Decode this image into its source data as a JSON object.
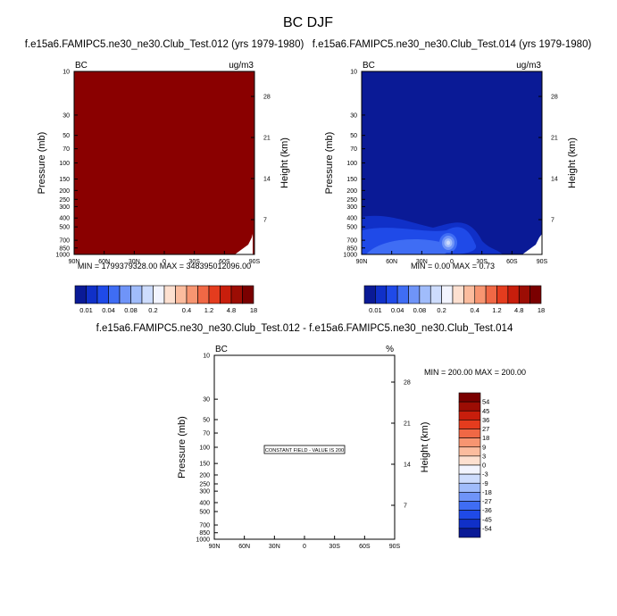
{
  "figure": {
    "title": "BC DJF"
  },
  "chart_data": [
    {
      "type": "heatmap",
      "title": "f.e15a6.FAMIPC5.ne30_ne30.Club_Test.012 (yrs 1979-1980)",
      "left_label": "BC",
      "units": "ug/m3",
      "xlabel": "",
      "ylabel": "Pressure (mb)",
      "y2label": "Height (km)",
      "x_ticks": [
        "90N",
        "60N",
        "30N",
        "0",
        "30S",
        "60S",
        "90S"
      ],
      "y_ticks": [
        "10",
        "30",
        "50",
        "70",
        "100",
        "150",
        "200",
        "250",
        "300",
        "400",
        "500",
        "700",
        "850",
        "1000"
      ],
      "y2_ticks": [
        "28",
        "21",
        "14",
        "7"
      ],
      "ylim": [
        10,
        1000
      ],
      "y_scale": "log",
      "stats_text": "MIN = 1799379328.00   MAX = 348395012096.00",
      "field_color": "#8a0000",
      "colorbar": {
        "orientation": "horizontal",
        "labels": [
          "0.01",
          "0.04",
          "0.08",
          "0.2",
          "0.4",
          "1.2",
          "4.8",
          "18"
        ]
      }
    },
    {
      "type": "heatmap",
      "title": "f.e15a6.FAMIPC5.ne30_ne30.Club_Test.014 (yrs 1979-1980)",
      "left_label": "BC",
      "units": "ug/m3",
      "xlabel": "",
      "ylabel": "Pressure (mb)",
      "y2label": "Height (km)",
      "x_ticks": [
        "90N",
        "60N",
        "30N",
        "0",
        "30S",
        "60S",
        "90S"
      ],
      "y_ticks": [
        "10",
        "30",
        "50",
        "70",
        "100",
        "150",
        "200",
        "250",
        "300",
        "400",
        "500",
        "700",
        "850",
        "1000"
      ],
      "y2_ticks": [
        "28",
        "21",
        "14",
        "7"
      ],
      "ylim": [
        10,
        1000
      ],
      "y_scale": "log",
      "stats_text": "MIN =   0.00   MAX =   0.73",
      "field_color": "#0a1a96",
      "colorbar": {
        "orientation": "horizontal",
        "labels": [
          "0.01",
          "0.04",
          "0.08",
          "0.2",
          "0.4",
          "1.2",
          "4.8",
          "18"
        ]
      }
    },
    {
      "type": "heatmap",
      "title": "f.e15a6.FAMIPC5.ne30_ne30.Club_Test.012 - f.e15a6.FAMIPC5.ne30_ne30.Club_Test.014",
      "left_label": "BC",
      "units": "%",
      "xlabel": "",
      "ylabel": "Pressure (mb)",
      "y2label": "Height (km)",
      "x_ticks": [
        "90N",
        "60N",
        "30N",
        "0",
        "30S",
        "60S",
        "90S"
      ],
      "y_ticks": [
        "10",
        "30",
        "50",
        "70",
        "100",
        "150",
        "200",
        "250",
        "300",
        "400",
        "500",
        "700",
        "850",
        "1000"
      ],
      "y2_ticks": [
        "28",
        "21",
        "14",
        "7"
      ],
      "ylim": [
        10,
        1000
      ],
      "y_scale": "log",
      "stats_text": "MIN = 200.00   MAX = 200.00",
      "field_note": "CONSTANT FIELD - VALUE IS 200",
      "field_color": "#ffffff",
      "colorbar": {
        "orientation": "vertical",
        "labels": [
          "54",
          "45",
          "36",
          "27",
          "18",
          "9",
          "3",
          "0",
          "-3",
          "-9",
          "-18",
          "-27",
          "-36",
          "-45",
          "-54"
        ]
      }
    }
  ],
  "colorbar_colors": [
    "#0a1a96",
    "#1030c8",
    "#1f4ae8",
    "#3f6df4",
    "#6f94f8",
    "#a0bcfb",
    "#cddcfd",
    "#f2f4fe",
    "#fde0d0",
    "#fbbc9e",
    "#f79571",
    "#f06845",
    "#e43c1e",
    "#c81e0c",
    "#9c0d04",
    "#7a0000"
  ]
}
